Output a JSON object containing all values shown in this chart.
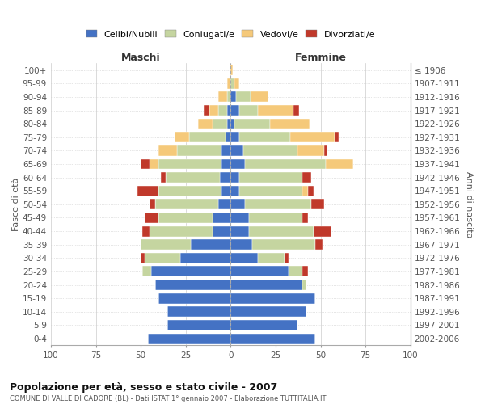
{
  "age_groups": [
    "0-4",
    "5-9",
    "10-14",
    "15-19",
    "20-24",
    "25-29",
    "30-34",
    "35-39",
    "40-44",
    "45-49",
    "50-54",
    "55-59",
    "60-64",
    "65-69",
    "70-74",
    "75-79",
    "80-84",
    "85-89",
    "90-94",
    "95-99",
    "100+"
  ],
  "birth_years": [
    "2002-2006",
    "1997-2001",
    "1992-1996",
    "1987-1991",
    "1982-1986",
    "1977-1981",
    "1972-1976",
    "1967-1971",
    "1962-1966",
    "1957-1961",
    "1952-1956",
    "1947-1951",
    "1942-1946",
    "1937-1941",
    "1932-1936",
    "1927-1931",
    "1922-1926",
    "1917-1921",
    "1912-1916",
    "1907-1911",
    "≤ 1906"
  ],
  "colors": {
    "celibi": "#4472c4",
    "coniugati": "#c5d5a0",
    "vedovi": "#f5c97a",
    "divorziati": "#c0392b"
  },
  "maschi": {
    "celibi": [
      46,
      35,
      35,
      40,
      42,
      44,
      28,
      22,
      10,
      10,
      7,
      5,
      6,
      5,
      5,
      3,
      2,
      2,
      0,
      0,
      0
    ],
    "coniugati": [
      0,
      0,
      0,
      0,
      0,
      5,
      20,
      28,
      35,
      30,
      35,
      35,
      30,
      35,
      25,
      20,
      8,
      5,
      2,
      0,
      0
    ],
    "vedovi": [
      0,
      0,
      0,
      0,
      0,
      0,
      0,
      0,
      0,
      0,
      0,
      0,
      0,
      5,
      10,
      8,
      8,
      5,
      5,
      2,
      0
    ],
    "divorziati": [
      0,
      0,
      0,
      0,
      0,
      0,
      2,
      0,
      4,
      8,
      3,
      12,
      3,
      5,
      0,
      0,
      0,
      3,
      0,
      0,
      0
    ]
  },
  "femmine": {
    "celibi": [
      47,
      37,
      42,
      47,
      40,
      32,
      15,
      12,
      10,
      10,
      8,
      5,
      5,
      8,
      7,
      5,
      2,
      5,
      3,
      0,
      0
    ],
    "coniugati": [
      0,
      0,
      0,
      0,
      2,
      8,
      15,
      35,
      36,
      30,
      37,
      35,
      35,
      45,
      30,
      28,
      20,
      10,
      8,
      2,
      0
    ],
    "vedovi": [
      0,
      0,
      0,
      0,
      0,
      0,
      0,
      0,
      0,
      0,
      0,
      3,
      0,
      15,
      15,
      25,
      22,
      20,
      10,
      3,
      1
    ],
    "divorziati": [
      0,
      0,
      0,
      0,
      0,
      3,
      2,
      4,
      10,
      3,
      7,
      3,
      5,
      0,
      2,
      2,
      0,
      3,
      0,
      0,
      0
    ]
  },
  "title": "Popolazione per età, sesso e stato civile - 2007",
  "subtitle": "COMUNE DI VALLE DI CADORE (BL) - Dati ISTAT 1° gennaio 2007 - Elaborazione TUTTITALIA.IT",
  "xlabel_left": "Maschi",
  "xlabel_right": "Femmine",
  "ylabel_left": "Fasce di età",
  "ylabel_right": "Anni di nascita",
  "xlim": 100,
  "xtick_step": 25,
  "legend_labels": [
    "Celibi/Nubili",
    "Coniugati/e",
    "Vedovi/e",
    "Divorziati/e"
  ],
  "bg_color": "#ffffff",
  "grid_color": "#cccccc"
}
